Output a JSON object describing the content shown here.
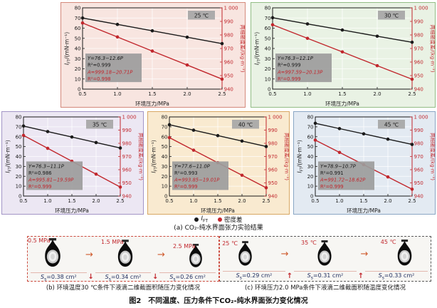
{
  "figure": {
    "caption_main": "图2　不同温度、压力条件下CO₂-纯水界面张力变化情况",
    "caption_a": "(a) CO₂-纯水界面张力实验结果",
    "caption_b": "(b) 环境温度30 ℃条件下液滴二维截面积随压力变化情况",
    "caption_c": "(c) 环境压力2.0 MPa条件下液滴二维截面积随温度变化情况"
  },
  "legend": {
    "series1_sym": "I",
    "series1_sub": "FT",
    "series2": "密度差"
  },
  "axes": {
    "x_label": "环境压力/MPa",
    "y_left_sym": "I",
    "y_left_sub": "FT",
    "y_left_rest": "/(mN·m⁻¹)",
    "y_right_label": "两相密度差/(kg·m⁻³)",
    "x_ticks": [
      "0.5",
      "1.0",
      "1.5",
      "2.0",
      "2.5"
    ],
    "y_left_ticks": [
      "0",
      "10",
      "20",
      "30",
      "40",
      "50",
      "60",
      "70",
      "80"
    ],
    "y_right_ticks": [
      "940",
      "950",
      "960",
      "970",
      "980",
      "990",
      "1 000"
    ],
    "badge_bg": "#a6a6a6",
    "annot_bg": "#9c9c9c"
  },
  "chart_data": [
    {
      "type": "line",
      "temperature_label": "25 ℃",
      "x": [
        0.5,
        1.0,
        1.5,
        2.0,
        2.5
      ],
      "xlabel": "环境压力/MPa",
      "ylabel_left": "IFT/(mN·m⁻¹)",
      "ylabel_right": "两相密度差/(kg·m⁻³)",
      "ylim_left": [
        0,
        80
      ],
      "ylim_right": [
        940,
        1000
      ],
      "series": [
        {
          "name": "IFT",
          "axis": "left",
          "color": "#1a1a1a",
          "values": [
            70.0,
            63.7,
            57.4,
            51.1,
            44.8
          ],
          "fit": "Y=76.3−12.6P",
          "r2": "R²=0.999"
        },
        {
          "name": "密度差",
          "axis": "right",
          "color": "#c1272d",
          "values": [
            988.8,
            978.5,
            968.1,
            957.8,
            947.4
          ],
          "fit": "A=999.18−20.71P",
          "r2": "R²=0.998"
        }
      ],
      "panel_bg": "#f8e5e0",
      "panel_border": "#d4897b"
    },
    {
      "type": "line",
      "temperature_label": "30 ℃",
      "x": [
        0.5,
        1.0,
        1.5,
        2.0,
        2.5
      ],
      "xlabel": "环境压力/MPa",
      "ylabel_left": "IFT/(mN·m⁻¹)",
      "ylabel_right": "两相密度差/(kg·m⁻³)",
      "ylim_left": [
        0,
        80
      ],
      "ylim_right": [
        940,
        1000
      ],
      "series": [
        {
          "name": "IFT",
          "axis": "left",
          "color": "#1a1a1a",
          "values": [
            70.3,
            64.2,
            58.2,
            52.1,
            46.1
          ],
          "fit": "Y=76.3−12.1P",
          "r2": "R²=0.999"
        },
        {
          "name": "密度差",
          "axis": "right",
          "color": "#c1272d",
          "values": [
            987.5,
            977.5,
            967.5,
            957.3,
            947.3
          ],
          "fit": "A=997.59−20.13P",
          "r2": "R²=0.999"
        }
      ],
      "panel_bg": "#e9f2e4",
      "panel_border": "#93bd85"
    },
    {
      "type": "line",
      "temperature_label": "35 ℃",
      "x": [
        0.5,
        1.0,
        1.5,
        2.0,
        2.5
      ],
      "xlabel": "环境压力/MPa",
      "ylabel_left": "IFT/(mN·m⁻¹)",
      "ylabel_right": "两相密度差/(kg·m⁻³)",
      "ylim_left": [
        0,
        80
      ],
      "ylim_right": [
        940,
        1000
      ],
      "series": [
        {
          "name": "IFT",
          "axis": "left",
          "color": "#1a1a1a",
          "values": [
            70.8,
            65.2,
            59.7,
            54.1,
            48.6
          ],
          "fit": "Y=76.3−11.1P",
          "r2": "R²=0.986"
        },
        {
          "name": "密度差",
          "axis": "right",
          "color": "#c1272d",
          "values": [
            986.0,
            976.2,
            966.4,
            956.6,
            946.8
          ],
          "fit": "A=995.81−19.59P",
          "r2": "R²=0.999"
        }
      ],
      "panel_bg": "#ece7f3",
      "panel_border": "#a295c6"
    },
    {
      "type": "line",
      "temperature_label": "40 ℃",
      "x": [
        0.5,
        1.0,
        1.5,
        2.0,
        2.5
      ],
      "xlabel": "环境压力/MPa",
      "ylabel_left": "IFT/(mN·m⁻¹)",
      "ylabel_right": "两相密度差/(kg·m⁻³)",
      "ylim_left": [
        0,
        80
      ],
      "ylim_right": [
        940,
        1000
      ],
      "series": [
        {
          "name": "IFT",
          "axis": "left",
          "color": "#1a1a1a",
          "values": [
            72.1,
            66.6,
            61.1,
            55.6,
            50.1
          ],
          "fit": "Y=77.6−11.0P",
          "r2": "R²=0.993"
        },
        {
          "name": "密度差",
          "axis": "right",
          "color": "#c1272d",
          "values": [
            984.3,
            974.8,
            965.3,
            955.8,
            946.3
          ],
          "fit": "A=993.85−19.01P",
          "r2": "R²=0.999"
        }
      ],
      "panel_bg": "#f9ead0",
      "panel_border": "#d8a763"
    },
    {
      "type": "line",
      "temperature_label": "45 ℃",
      "x": [
        0.5,
        1.0,
        1.5,
        2.0,
        2.5
      ],
      "xlabel": "环境压力/MPa",
      "ylabel_left": "IFT/(mN·m⁻¹)",
      "ylabel_right": "两相密度差/(kg·m⁻³)",
      "ylim_left": [
        0,
        80
      ],
      "ylim_right": [
        940,
        1000
      ],
      "series": [
        {
          "name": "IFT",
          "axis": "left",
          "color": "#1a1a1a",
          "values": [
            73.6,
            68.2,
            62.9,
            57.5,
            52.2
          ],
          "fit": "Y=78.9−10.7P",
          "r2": "R²=0.991"
        },
        {
          "name": "密度差",
          "axis": "right",
          "color": "#c1272d",
          "values": [
            982.4,
            973.1,
            963.8,
            954.5,
            945.2
          ],
          "fit": "A=991.72−18.62P",
          "r2": "R²=0.999"
        }
      ],
      "panel_bg": "#e3eaf2",
      "panel_border": "#8aa6c4"
    }
  ],
  "sections": {
    "b": {
      "step_arrow": "→",
      "trend_arrow": "↓",
      "area_sym": "S",
      "area_sub": "s",
      "items": [
        {
          "cond": "0.5 MPa",
          "area_text": "=0.38 cm²",
          "area_num": 0.38
        },
        {
          "cond": "1.5 MPa",
          "area_text": "=0.34 cm²",
          "area_num": 0.34
        },
        {
          "cond": "2.5 MPa",
          "area_text": "=0.26 cm²",
          "area_num": 0.26
        }
      ]
    },
    "c": {
      "step_arrow": "→",
      "trend_arrow": "↑",
      "area_sym": "S",
      "area_sub": "s",
      "items": [
        {
          "cond": "25 ℃",
          "area_text": "=0.29 cm²",
          "area_num": 0.29
        },
        {
          "cond": "35 ℃",
          "area_text": "=0.31 cm²",
          "area_num": 0.31
        },
        {
          "cond": "45 ℃",
          "area_text": "=0.33 cm²",
          "area_num": 0.33
        }
      ]
    }
  }
}
